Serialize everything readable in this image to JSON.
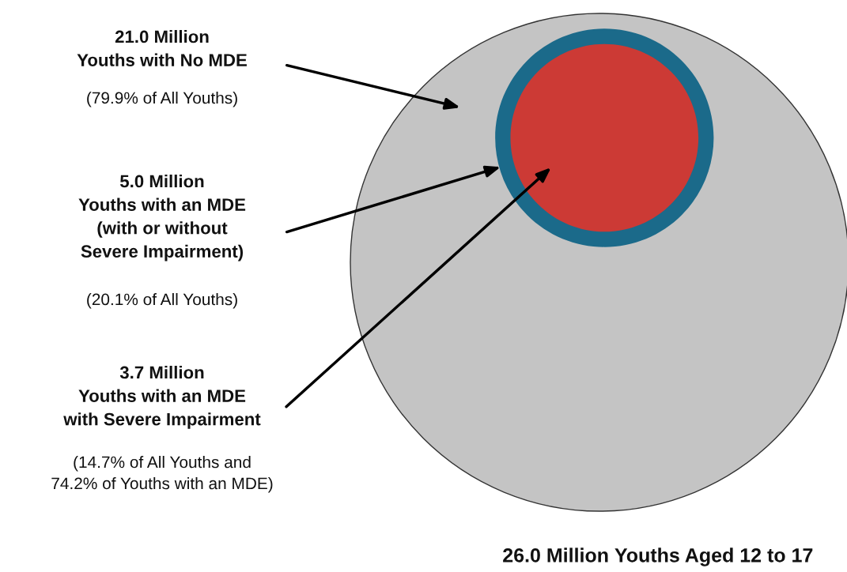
{
  "chart_data": {
    "type": "other",
    "categories": [
      "Youths Aged 12 to 17",
      "Youths with an MDE\n(with or without\nSevere Impairment)",
      "Youths with an MDE\nwith Severe Impairment"
    ],
    "values": [
      26.0,
      5.0,
      3.7
    ],
    "value_labels": [
      "26.0 Million",
      "5.0 Million",
      "3.7 Million"
    ],
    "colors": [
      "#c4c4c4",
      "#1b6a8a",
      "#cc3a35"
    ],
    "annotations": [
      "21.0 Million\nYouths with No MDE",
      "(79.9% of All Youths)",
      "(20.1% of All Youths)",
      "(14.7% of All Youths and\n74.2% of Youths with an MDE)"
    ]
  }
}
